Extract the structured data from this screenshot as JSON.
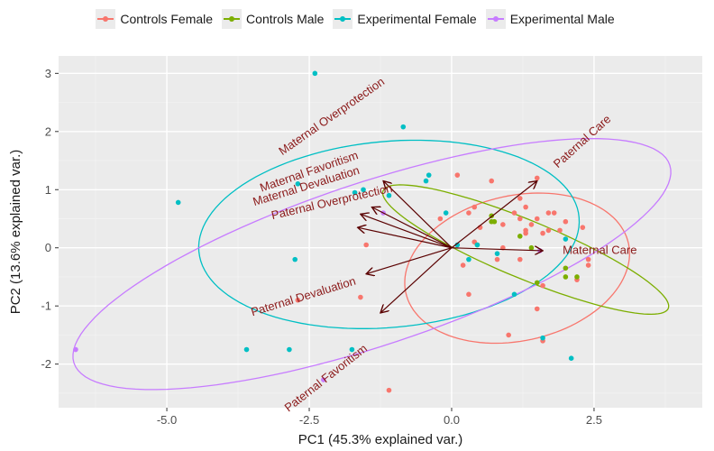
{
  "chart_data": {
    "type": "scatter",
    "title": "",
    "xlabel": "PC1 (45.3% explained var.)",
    "ylabel": "PC2 (13.6% explained var.)",
    "xlim": [
      -6.9,
      4.4
    ],
    "ylim": [
      -2.75,
      3.3
    ],
    "xticks": [
      -5.0,
      -2.5,
      0.0,
      2.5
    ],
    "xtick_labels": [
      "-5.0",
      "-2.5",
      "0.0",
      "2.5"
    ],
    "yticks": [
      -2,
      -1,
      0,
      1,
      2,
      3
    ],
    "ytick_labels": [
      "-2",
      "-1",
      "0",
      "1",
      "2",
      "3"
    ],
    "grid": true,
    "legend_position": "top",
    "series": [
      {
        "name": "Controls Female",
        "color": "#F8766D",
        "points": [
          [
            0.1,
            1.25
          ],
          [
            0.7,
            1.15
          ],
          [
            0.9,
            0.4
          ],
          [
            1.1,
            0.6
          ],
          [
            1.2,
            0.5
          ],
          [
            1.2,
            0.85
          ],
          [
            1.3,
            0.25
          ],
          [
            1.3,
            0.3
          ],
          [
            1.3,
            0.7
          ],
          [
            1.4,
            0.4
          ],
          [
            1.5,
            0.5
          ],
          [
            1.6,
            0.25
          ],
          [
            1.7,
            0.3
          ],
          [
            1.7,
            0.6
          ],
          [
            1.8,
            0.6
          ],
          [
            1.9,
            0.3
          ],
          [
            2.0,
            0.45
          ],
          [
            2.3,
            0.35
          ],
          [
            2.4,
            -0.3
          ],
          [
            2.2,
            -0.55
          ],
          [
            -0.2,
            0.5
          ],
          [
            0.3,
            0.6
          ],
          [
            0.4,
            0.7
          ],
          [
            -1.5,
            0.05
          ],
          [
            -1.6,
            -0.85
          ],
          [
            -2.7,
            -0.9
          ],
          [
            0.2,
            -0.3
          ],
          [
            0.4,
            0.1
          ],
          [
            0.8,
            -0.2
          ],
          [
            1.2,
            -0.2
          ],
          [
            0.3,
            -0.8
          ],
          [
            1.6,
            -0.65
          ],
          [
            1.5,
            -1.05
          ],
          [
            1.0,
            -1.5
          ],
          [
            1.6,
            -1.6
          ],
          [
            -1.1,
            -2.45
          ],
          [
            0.5,
            0.35
          ],
          [
            0.9,
            0.0
          ],
          [
            1.5,
            1.2
          ],
          [
            2.4,
            -0.2
          ]
        ]
      },
      {
        "name": "Controls Male",
        "color": "#7CAE00",
        "points": [
          [
            0.7,
            0.45
          ],
          [
            0.75,
            0.45
          ],
          [
            0.7,
            0.55
          ],
          [
            0.45,
            0.05
          ],
          [
            1.2,
            0.2
          ],
          [
            1.4,
            0.0
          ],
          [
            2.0,
            -0.5
          ],
          [
            2.2,
            -0.5
          ],
          [
            2.0,
            -0.35
          ],
          [
            1.5,
            -0.6
          ]
        ]
      },
      {
        "name": "Experimental Female",
        "color": "#00BFC4",
        "points": [
          [
            -2.4,
            3.0
          ],
          [
            -0.85,
            2.08
          ],
          [
            -4.8,
            0.78
          ],
          [
            -2.7,
            1.1
          ],
          [
            -1.7,
            0.95
          ],
          [
            -1.55,
            1.0
          ],
          [
            -1.1,
            0.9
          ],
          [
            -0.4,
            1.25
          ],
          [
            -0.45,
            1.15
          ],
          [
            -0.1,
            0.6
          ],
          [
            -2.75,
            -0.2
          ],
          [
            -2.85,
            -1.75
          ],
          [
            -1.75,
            -1.75
          ],
          [
            -3.6,
            -1.75
          ],
          [
            0.45,
            0.05
          ],
          [
            0.1,
            0.05
          ],
          [
            0.3,
            -0.2
          ],
          [
            1.1,
            -0.8
          ],
          [
            1.6,
            -1.55
          ],
          [
            2.1,
            -1.9
          ],
          [
            2.0,
            0.15
          ],
          [
            0.8,
            -0.1
          ]
        ]
      },
      {
        "name": "Experimental Male",
        "color": "#C77CFF",
        "points": [
          [
            -1.2,
            0.6
          ],
          [
            1.55,
            -0.05
          ],
          [
            -2.25,
            -2.27
          ],
          [
            -6.6,
            -1.75
          ]
        ]
      }
    ],
    "ellipses": [
      {
        "group": "Controls Female",
        "center": [
          1.15,
          -0.35
        ],
        "semi_axes": [
          2.0,
          1.25
        ],
        "angle_deg": 12
      },
      {
        "group": "Controls Male",
        "center": [
          1.3,
          -0.03
        ],
        "semi_axes": [
          2.7,
          0.5
        ],
        "angle_deg": -22
      },
      {
        "group": "Experimental Female",
        "center": [
          -1.1,
          0.23
        ],
        "semi_axes": [
          3.35,
          1.6
        ],
        "angle_deg": 5
      },
      {
        "group": "Experimental Male",
        "center": [
          -1.4,
          -0.28
        ],
        "semi_axes": [
          5.5,
          1.4
        ],
        "angle_deg": 18
      }
    ],
    "vectors": [
      {
        "label": "Maternal Overprotection",
        "end": [
          -1.2,
          1.15
        ],
        "label_pos": [
          -2.1,
          2.25
        ],
        "label_angle": -35
      },
      {
        "label": "Maternal Favoritism",
        "end": [
          -1.4,
          0.7
        ],
        "label_pos": [
          -2.5,
          1.3
        ],
        "label_angle": -19
      },
      {
        "label": "Maternal Devaluation",
        "end": [
          -1.6,
          0.58
        ],
        "label_pos": [
          -2.55,
          1.05
        ],
        "label_angle": -17
      },
      {
        "label": "Paternal Overprotection",
        "end": [
          -1.65,
          0.35
        ],
        "label_pos": [
          -2.1,
          0.78
        ],
        "label_angle": -13
      },
      {
        "label": "Paternal Care",
        "end": [
          1.5,
          1.15
        ],
        "label_pos": [
          2.3,
          1.82
        ],
        "label_angle": -42
      },
      {
        "label": "Maternal Care",
        "end": [
          1.6,
          -0.05
        ],
        "label_pos": [
          2.6,
          -0.05
        ],
        "label_angle": 0
      },
      {
        "label": "Paternal Devaluation",
        "end": [
          -1.5,
          -0.45
        ],
        "label_pos": [
          -2.6,
          -0.85
        ],
        "label_angle": -17
      },
      {
        "label": "Paternal Favoritism",
        "end": [
          -1.25,
          -1.12
        ],
        "label_pos": [
          -2.2,
          -2.25
        ],
        "label_angle": -38
      }
    ]
  }
}
